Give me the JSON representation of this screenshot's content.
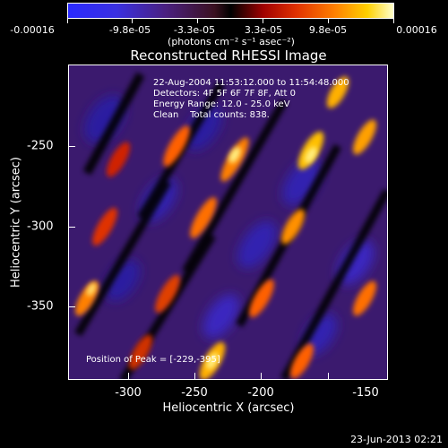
{
  "colorbar": {
    "labels": [
      "-0.00016",
      "-9.8e-05",
      "-3.3e-05",
      "3.3e-05",
      "9.8e-05",
      "0.00016"
    ],
    "units": "(photons cm⁻² s⁻¹ asec⁻²)"
  },
  "plot": {
    "title": "Reconstructed RHESSI Image",
    "info_lines": [
      "22-Aug-2004 11:53:12.000 to 11:54:48.000",
      "Detectors: 4F 5F 6F 7F 8F, Att 0",
      "Energy Range: 12.0 - 25.0 keV",
      "Clean    Total counts: 838."
    ],
    "peak_text": "Position of Peak = [-229,-395]",
    "xlabel": "Heliocentric X (arcsec)",
    "ylabel": "Heliocentric Y (arcsec)",
    "xticks": [
      "-300",
      "-250",
      "-200",
      "-150"
    ],
    "yticks": [
      "-250",
      "-300",
      "-350"
    ]
  },
  "footer": {
    "timestamp": "23-Jun-2013 02:21"
  }
}
